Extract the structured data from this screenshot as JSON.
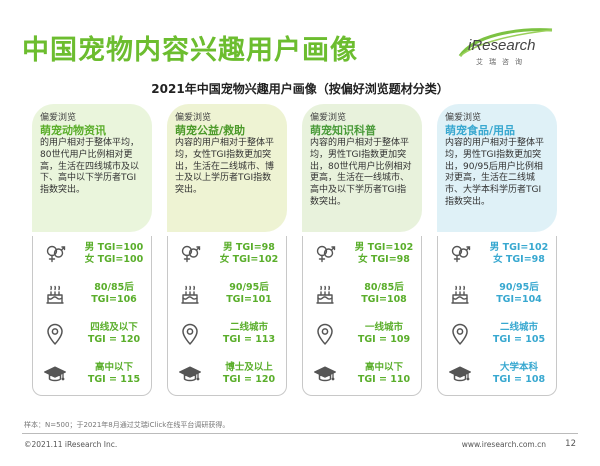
{
  "header": {
    "title": "中国宠物内容兴趣用户画像",
    "logo_text": "iResearch",
    "logo_sub": "艾瑞咨询"
  },
  "subtitle": "2021年中国宠物兴趣用户画像（按偏好浏览题材分类）",
  "cards": [
    {
      "kicker": "偏爱浏览",
      "title": "萌宠动物资讯",
      "desc": "的用户相对于整体平均，80世代用户比例相对更高，生活在四线城市及以下、高中以下学历者TGI指数突出。",
      "gender": [
        "男 TGI=100",
        "女 TGI=100"
      ],
      "age": [
        "80/85后",
        "TGI=106"
      ],
      "city": [
        "四线及以下",
        "TGI = 120"
      ],
      "edu": [
        "高中以下",
        "TGI = 115"
      ]
    },
    {
      "kicker": "偏爱浏览",
      "title": "萌宠公益/救助",
      "desc": "内容的用户相对于整体平均，女性TGI指数更加突出，生活在二线城市、博士及以上学历者TGI指数突出。",
      "gender": [
        "男 TGI=98",
        "女 TGI=102"
      ],
      "age": [
        "90/95后",
        "TGI=101"
      ],
      "city": [
        "二线城市",
        "TGI = 113"
      ],
      "edu": [
        "博士及以上",
        "TGI = 120"
      ]
    },
    {
      "kicker": "偏爱浏览",
      "title": "萌宠知识科普",
      "desc": "内容的用户相对于整体平均，男性TGI指数更加突出，80世代用户比例相对更高，生活在一线城市、高中及以下学历者TGI指数突出。",
      "gender": [
        "男 TGI=102",
        "女 TGI=98"
      ],
      "age": [
        "80/85后",
        "TGI=108"
      ],
      "city": [
        "一线城市",
        "TGI = 109"
      ],
      "edu": [
        "高中以下",
        "TGI = 110"
      ]
    },
    {
      "kicker": "偏爱浏览",
      "title": "萌宠食品/用品",
      "desc": "内容的用户相对于整体平均，男性TGI指数更加突出，90/95后用户比例相对更高，生活在二线城市、大学本科学历者TGI指数突出。",
      "gender": [
        "男 TGI=102",
        "女 TGI=98"
      ],
      "age": [
        "90/95后",
        "TGI=104"
      ],
      "city": [
        "二线城市",
        "TGI = 105"
      ],
      "edu": [
        "大学本科",
        "TGI = 108"
      ]
    }
  ],
  "footer": {
    "note": "样本：N=500；于2021年8月通过艾瑞iClick在线平台调研获得。",
    "copyright": "©2021.11 iResearch Inc.",
    "website": "www.iresearch.com.cn",
    "page": "12"
  },
  "colors": {
    "green": "#6cbd2f",
    "blue": "#38a8d0",
    "icon": "#555555"
  }
}
